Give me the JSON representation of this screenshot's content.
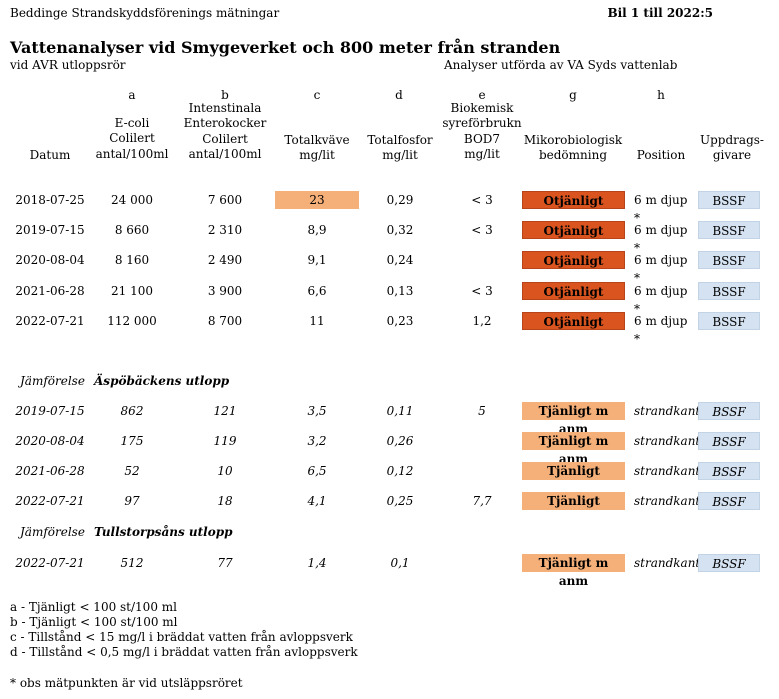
{
  "header": {
    "left": "Beddinge Strandskyddsförenings mätningar",
    "right": "Bil 1 till 2022:5"
  },
  "title": "Vattenanalyser vid Smygeverket och 800 meter från stranden",
  "subtitle_left": "vid AVR utloppsrör",
  "subtitle_right": "Analyser utförda av VA Syds vattenlab",
  "columns": {
    "letters": [
      "a",
      "b",
      "c",
      "d",
      "e",
      "g",
      "h"
    ],
    "datum": "Datum",
    "a": [
      "E-coli",
      "Colilert",
      "antal/100ml"
    ],
    "b": [
      "Intenstinala",
      "Enterokocker",
      "Colilert",
      "antal/100ml"
    ],
    "c": [
      "Totalkväve",
      "mg/lit"
    ],
    "d": [
      "Totalfosfor",
      "mg/lit"
    ],
    "e": [
      "Biokemisk",
      "syreförbrukn",
      "BOD7",
      "mg/lit"
    ],
    "g": [
      "Mikorobiologisk",
      "bedömning"
    ],
    "h": [
      "Position"
    ],
    "uppdrag": [
      "Uppdrags-",
      "givare"
    ]
  },
  "main_rows": [
    {
      "date": "2018-07-25",
      "a": "24 000",
      "b": "7 600",
      "c": "23",
      "d": "0,29",
      "e": "< 3",
      "g": "Otjänligt",
      "h": "6 m djup *",
      "giver": "BSSF"
    },
    {
      "date": "2019-07-15",
      "a": "8 660",
      "b": "2 310",
      "c": "8,9",
      "d": "0,32",
      "e": "< 3",
      "g": "Otjänligt",
      "h": "6 m djup *",
      "giver": "BSSF"
    },
    {
      "date": "2020-08-04",
      "a": "8 160",
      "b": "2 490",
      "c": "9,1",
      "d": "0,24",
      "e": "",
      "g": "Otjänligt",
      "h": "6 m djup *",
      "giver": "BSSF"
    },
    {
      "date": "2021-06-28",
      "a": "21 100",
      "b": "3 900",
      "c": "6,6",
      "d": "0,13",
      "e": "< 3",
      "g": "Otjänligt",
      "h": "6 m djup *",
      "giver": "BSSF"
    },
    {
      "date": "2022-07-21",
      "a": "112 000",
      "b": "8 700",
      "c": "11",
      "d": "0,23",
      "e": "1,2",
      "g": "Otjänligt",
      "h": "6 m djup *",
      "giver": "BSSF"
    }
  ],
  "section1": {
    "label": "Jämförelse",
    "name": "Äspöbäckens utlopp",
    "rows": [
      {
        "date": "2019-07-15",
        "a": "862",
        "b": "121",
        "c": "3,5",
        "d": "0,11",
        "e": "5",
        "g": "Tjänligt m anm",
        "h": "strandkant",
        "giver": "BSSF"
      },
      {
        "date": "2020-08-04",
        "a": "175",
        "b": "119",
        "c": "3,2",
        "d": "0,26",
        "e": "",
        "g": "Tjänligt m anm",
        "h": "strandkant",
        "giver": "BSSF"
      },
      {
        "date": "2021-06-28",
        "a": "52",
        "b": "10",
        "c": "6,5",
        "d": "0,12",
        "e": "",
        "g": "Tjänligt",
        "h": "strandkant",
        "giver": "BSSF"
      },
      {
        "date": "2022-07-21",
        "a": "97",
        "b": "18",
        "c": "4,1",
        "d": "0,25",
        "e": "7,7",
        "g": "Tjänligt",
        "h": "strandkant",
        "giver": "BSSF"
      }
    ]
  },
  "section2": {
    "label": "Jämförelse",
    "name": "Tullstorpsåns utlopp",
    "rows": [
      {
        "date": "2022-07-21",
        "a": "512",
        "b": "77",
        "c": "1,4",
        "d": "0,1",
        "e": "",
        "g": "Tjänligt m anm",
        "h": "strandkant",
        "giver": "BSSF"
      }
    ]
  },
  "notes": [
    "a - Tjänligt < 100 st/100 ml",
    "b - Tjänligt < 100 st/100 ml",
    "c - Tillstånd < 15 mg/l i bräddat vatten från avloppsverk",
    "d - Tillstånd < 0,5 mg/l i bräddat vatten från avloppsverk"
  ],
  "footnote": "* obs mätpunkten är vid utsläppsröret",
  "colors": {
    "otjanligt": "#d9541e",
    "tjanligt": "#f5b07a",
    "bssf": "#d4e2f1",
    "highlight_c": "#f5b07a"
  }
}
